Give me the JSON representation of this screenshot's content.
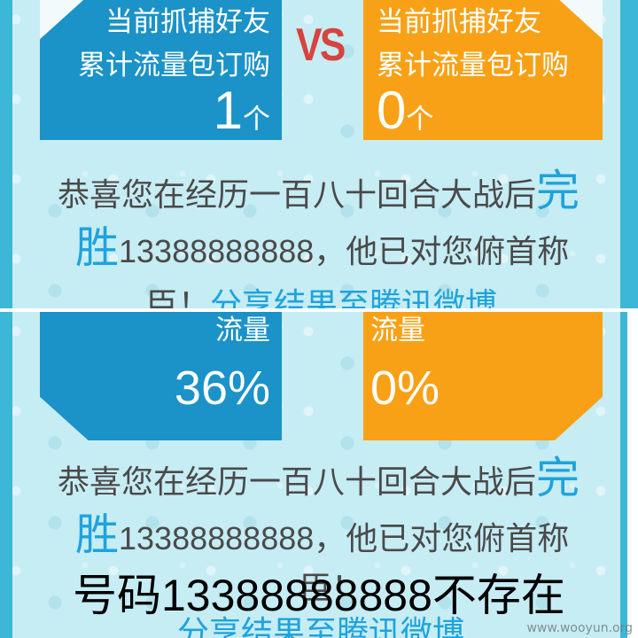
{
  "colors": {
    "background": "#c6ecf4",
    "edge": "#3cb7d7",
    "blue_card": "#1b92c8",
    "orange_card": "#f8a116",
    "vs_red": "#d8433f",
    "text_gray": "#4a4a4a",
    "highlight_cyan": "#1ea3dc",
    "toast_text": "#000000"
  },
  "top_panel": {
    "left_card": {
      "line1": "当前抓捕好友",
      "line2": "累计流量包订购",
      "count": "1",
      "unit": "个"
    },
    "vs": "VS",
    "right_card": {
      "line1": "当前抓捕好友",
      "line2": "累计流量包订购",
      "count": "0",
      "unit": "个"
    },
    "message": {
      "line1_text": "恭喜您在经历一百八十回合大战后",
      "line1_big": "完",
      "line2_big": "胜",
      "line2_text": "13388888888，他已对您俯首称",
      "line3_text": "臣！",
      "share_link": "分享结果至腾讯微博"
    }
  },
  "bottom_panel": {
    "left_card": {
      "label": "流量",
      "value": "36%"
    },
    "right_card": {
      "label": "流量",
      "value": "0%"
    },
    "message": {
      "line1_text": "恭喜您在经历一百八十回合大战后",
      "line1_big": "完",
      "line2_big": "胜",
      "line2_text": "13388888888，他已对您俯首称",
      "line3_text": "臣！",
      "share_link": "分享结果至腾讯微博"
    }
  },
  "toast": "号码13388888888不存在",
  "watermark": "www.wooyun.org"
}
